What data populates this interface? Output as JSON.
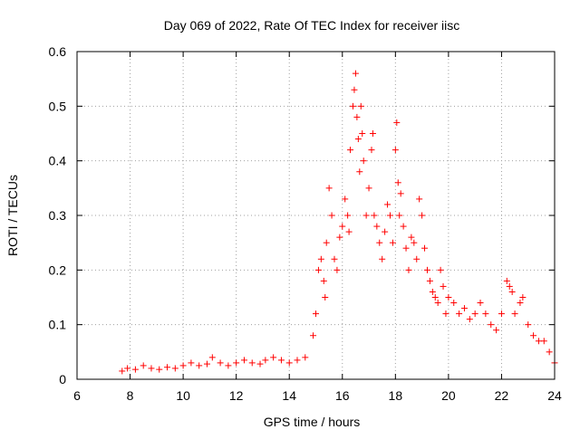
{
  "chart_data": {
    "type": "scatter",
    "title": "Day 069 of 2022, Rate Of TEC Index for receiver iisc",
    "xlabel": "GPS time / hours",
    "ylabel": "ROTI / TECUs",
    "xlim": [
      6,
      24
    ],
    "ylim": [
      0,
      0.6
    ],
    "xticks": [
      "6",
      "8",
      "10",
      "12",
      "14",
      "16",
      "18",
      "20",
      "22",
      "24"
    ],
    "yticks": [
      "0",
      "0.1",
      "0.2",
      "0.3",
      "0.4",
      "0.5",
      "0.6"
    ],
    "grid": true,
    "marker": "+",
    "color": "#ff0000",
    "series": [
      {
        "x": [
          7.7,
          7.9,
          8.2,
          8.5,
          8.8,
          9.1,
          9.4,
          9.7,
          10.0,
          10.3,
          10.6,
          10.9,
          11.1,
          11.4,
          11.7,
          12.0,
          12.3,
          12.6,
          12.9,
          13.1,
          13.4,
          13.7,
          14.0,
          14.3,
          14.6,
          14.9,
          15.0,
          15.1,
          15.2,
          15.3,
          15.35,
          15.4,
          15.5,
          15.6,
          15.7,
          15.8,
          15.9,
          16.0,
          16.1,
          16.2,
          16.25,
          16.3,
          16.4,
          16.45,
          16.5,
          16.55,
          16.6,
          16.65,
          16.7,
          16.75,
          16.8,
          16.9,
          17.0,
          17.1,
          17.15,
          17.2,
          17.3,
          17.4,
          17.5,
          17.6,
          17.7,
          17.8,
          17.9,
          18.0,
          18.05,
          18.1,
          18.15,
          18.2,
          18.3,
          18.4,
          18.5,
          18.6,
          18.7,
          18.8,
          18.9,
          19.0,
          19.1,
          19.2,
          19.3,
          19.4,
          19.5,
          19.6,
          19.7,
          19.8,
          19.9,
          20.0,
          20.2,
          20.4,
          20.6,
          20.8,
          21.0,
          21.2,
          21.4,
          21.6,
          21.8,
          22.0,
          22.2,
          22.3,
          22.4,
          22.5,
          22.7,
          22.8,
          23.0,
          23.2,
          23.4,
          23.6,
          23.8,
          24.0
        ],
        "y": [
          0.015,
          0.02,
          0.018,
          0.025,
          0.02,
          0.018,
          0.022,
          0.02,
          0.025,
          0.03,
          0.025,
          0.028,
          0.04,
          0.03,
          0.025,
          0.03,
          0.035,
          0.03,
          0.028,
          0.035,
          0.04,
          0.035,
          0.03,
          0.035,
          0.04,
          0.08,
          0.12,
          0.2,
          0.22,
          0.18,
          0.15,
          0.25,
          0.35,
          0.3,
          0.22,
          0.2,
          0.26,
          0.28,
          0.33,
          0.3,
          0.27,
          0.42,
          0.5,
          0.53,
          0.56,
          0.48,
          0.44,
          0.38,
          0.5,
          0.45,
          0.4,
          0.3,
          0.35,
          0.42,
          0.45,
          0.3,
          0.28,
          0.25,
          0.22,
          0.27,
          0.32,
          0.3,
          0.25,
          0.42,
          0.47,
          0.36,
          0.3,
          0.34,
          0.28,
          0.24,
          0.2,
          0.26,
          0.25,
          0.22,
          0.33,
          0.3,
          0.24,
          0.2,
          0.18,
          0.16,
          0.15,
          0.14,
          0.2,
          0.17,
          0.12,
          0.15,
          0.14,
          0.12,
          0.13,
          0.11,
          0.12,
          0.14,
          0.12,
          0.1,
          0.09,
          0.12,
          0.18,
          0.17,
          0.16,
          0.12,
          0.14,
          0.15,
          0.1,
          0.08,
          0.07,
          0.07,
          0.05,
          0.03
        ]
      }
    ]
  }
}
